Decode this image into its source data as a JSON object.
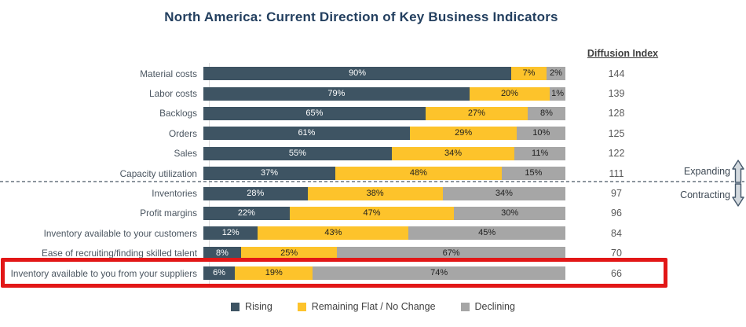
{
  "title": "North America: Current Direction of Key Business Indicators",
  "diffusion_header": "Diffusion Index",
  "side_labels": {
    "expanding": "Expanding",
    "contracting": "Contracting"
  },
  "legend": [
    {
      "label": "Rising",
      "color": "#3e5463"
    },
    {
      "label": "Remaining Flat / No Change",
      "color": "#fdc32b"
    },
    {
      "label": "Declining",
      "color": "#a6a6a6"
    }
  ],
  "colors": {
    "rising": "#3e5463",
    "flat": "#fdc32b",
    "declining": "#a6a6a6",
    "highlight_box": "#e21717",
    "title": "#233f5f"
  },
  "chart_data": {
    "type": "bar",
    "orientation": "horizontal",
    "stacked": true,
    "unit": "%",
    "categories": [
      "Material costs",
      "Labor costs",
      "Backlogs",
      "Orders",
      "Sales",
      "Capacity utilization",
      "Inventories",
      "Profit margins",
      "Inventory available to your customers",
      "Ease of recruiting/finding skilled talent",
      "Inventory available to you from your suppliers"
    ],
    "series": [
      {
        "name": "Rising",
        "color": "#3e5463",
        "text_color": "#ffffff",
        "values": [
          90,
          79,
          65,
          61,
          55,
          37,
          28,
          22,
          12,
          8,
          6
        ]
      },
      {
        "name": "Remaining Flat / No Change",
        "color": "#fdc32b",
        "text_color": "#1f1f1f",
        "values": [
          7,
          20,
          27,
          29,
          34,
          48,
          38,
          47,
          43,
          25,
          19
        ]
      },
      {
        "name": "Declining",
        "color": "#a6a6a6",
        "text_color": "#1f1f1f",
        "values": [
          2,
          1,
          8,
          10,
          11,
          15,
          34,
          30,
          45,
          67,
          74
        ]
      }
    ],
    "diffusion_index": [
      144,
      139,
      128,
      125,
      122,
      111,
      97,
      96,
      84,
      70,
      66
    ],
    "divider_after_row": 5,
    "highlighted_row": 10,
    "legend_position": "bottom",
    "xlim": [
      0,
      100
    ],
    "grid": false
  }
}
